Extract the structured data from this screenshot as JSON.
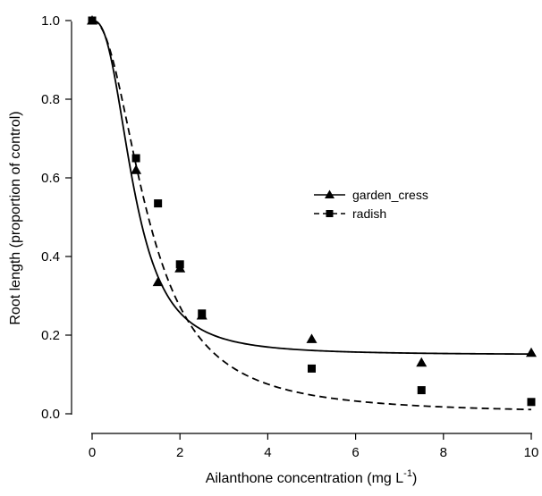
{
  "chart_data": {
    "type": "scatter",
    "xlabel": "Ailanthone concentration (mg L",
    "xlabel_sup": "-1",
    "xlabel_end": ")",
    "ylabel": "Root length (proportion of control)",
    "xlim": [
      0,
      10
    ],
    "ylim": [
      0,
      1.0
    ],
    "xticks": [
      0,
      2,
      4,
      6,
      8,
      10
    ],
    "yticks": [
      0.0,
      0.2,
      0.4,
      0.6,
      0.8,
      1.0
    ],
    "xtick_labels": [
      "0",
      "2",
      "4",
      "6",
      "8",
      "10"
    ],
    "ytick_labels": [
      "0.0",
      "0.2",
      "0.4",
      "0.6",
      "0.8",
      "1.0"
    ],
    "grid": false,
    "legend_position": "center-right",
    "series": [
      {
        "name": "garden_cress",
        "marker": "triangle",
        "line_style": "solid",
        "x": [
          0,
          1,
          1.5,
          2,
          2.5,
          5,
          7.5,
          10
        ],
        "y": [
          1.0,
          0.62,
          0.335,
          0.37,
          0.25,
          0.19,
          0.13,
          0.155
        ],
        "fit": {
          "lower": 0.15,
          "upper": 1.0,
          "ec50": 0.95,
          "slope": 2.6
        }
      },
      {
        "name": "radish",
        "marker": "square",
        "line_style": "dashed",
        "x": [
          0,
          1,
          1.5,
          2,
          2.5,
          5,
          7.5,
          10
        ],
        "y": [
          1.0,
          0.65,
          0.535,
          0.38,
          0.255,
          0.115,
          0.06,
          0.03
        ],
        "fit": {
          "lower": 0.0,
          "upper": 1.0,
          "ec50": 1.28,
          "slope": 2.2
        }
      }
    ]
  }
}
